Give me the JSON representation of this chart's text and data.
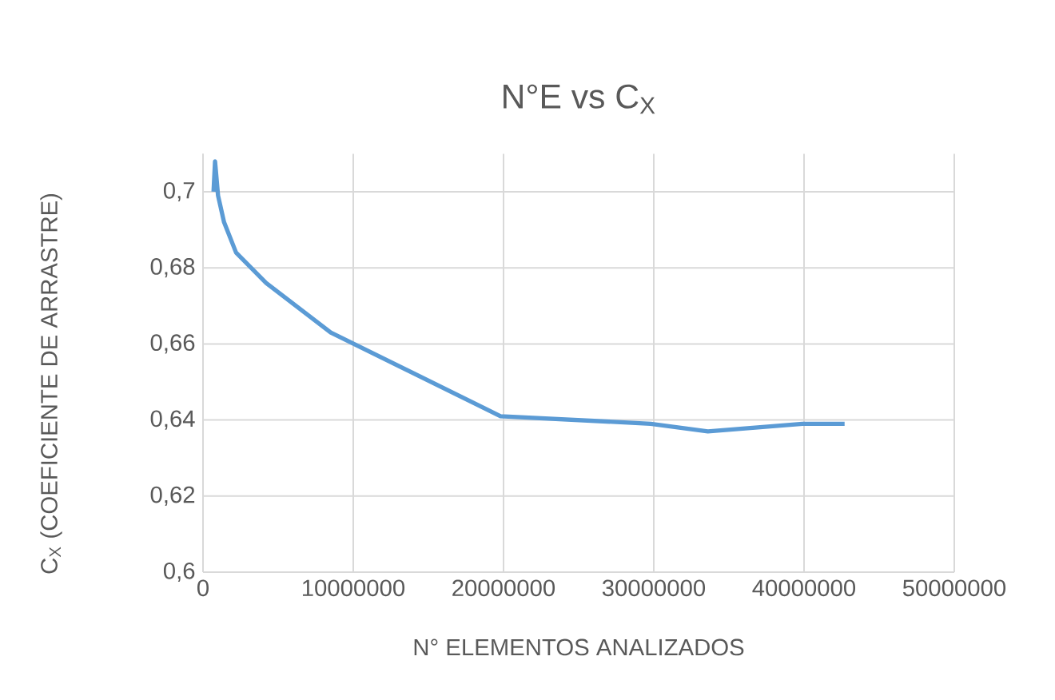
{
  "chart_data": {
    "type": "line",
    "title": "N°E vs C$_{X}$",
    "xlabel": "N° ELEMENTOS ANALIZADOS",
    "ylabel": "C$_{X}$ (COEFICIENTE DE ARRASTRE)",
    "series": [
      {
        "color": "#5b9bd5",
        "x": [
          700000,
          800000,
          1000000,
          1400000,
          2200000,
          4200000,
          8500000,
          19800000,
          29800000,
          33600000,
          39900000,
          42700000
        ],
        "values": [
          0.7,
          0.708,
          0.699,
          0.692,
          0.684,
          0.676,
          0.663,
          0.641,
          0.639,
          0.637,
          0.639,
          0.639
        ]
      }
    ],
    "xlim": [
      0,
      50000000
    ],
    "xticks": [
      0,
      10000000,
      20000000,
      30000000,
      40000000,
      50000000
    ],
    "ylim": [
      0.6,
      0.71
    ],
    "yticks": [
      {
        "value": 0.6,
        "label": "0,6"
      },
      {
        "value": 0.62,
        "label": "0,62"
      },
      {
        "value": 0.64,
        "label": "0,64"
      },
      {
        "value": 0.66,
        "label": "0,66"
      },
      {
        "value": 0.68,
        "label": "0,68"
      },
      {
        "value": 0.7,
        "label": "0,7"
      }
    ],
    "grid": true
  }
}
